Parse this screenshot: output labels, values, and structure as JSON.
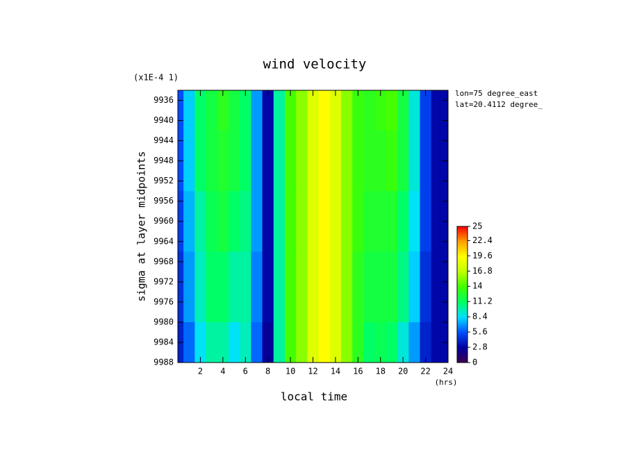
{
  "chart_data": {
    "type": "contour",
    "title": "wind velocity",
    "scale_note": "(x1E-4 1)",
    "xlabel": "local time",
    "xunit": "(hrs)",
    "ylabel": "sigma at layer midpoints",
    "annotations": [
      "lon=75 degree_east",
      "lat=20.4112 degree_"
    ],
    "x": [
      0,
      1,
      2,
      3,
      4,
      5,
      6,
      7,
      8,
      9,
      10,
      11,
      12,
      13,
      14,
      15,
      16,
      17,
      18,
      19,
      20,
      21,
      22,
      23,
      24
    ],
    "y": [
      9936,
      9948,
      9960,
      9972,
      9988
    ],
    "z": [
      [
        5.5,
        8,
        11,
        12,
        13,
        12,
        11,
        7,
        3,
        10,
        14,
        15.5,
        18,
        19.5,
        18,
        15.5,
        13.5,
        13,
        13.5,
        14,
        12,
        9,
        5,
        3,
        3
      ],
      [
        5.5,
        8,
        11,
        12,
        12.5,
        12,
        11,
        7,
        3,
        10,
        14,
        15.5,
        18,
        19.5,
        18,
        15.5,
        13.5,
        13,
        13,
        13.5,
        12,
        9,
        5,
        3,
        3
      ],
      [
        5,
        7.5,
        10,
        11.5,
        12,
        11,
        10.5,
        7,
        3,
        10,
        14,
        15.5,
        18,
        19.5,
        18,
        15.5,
        13.5,
        12.5,
        12.5,
        12.5,
        11,
        8.5,
        5,
        3,
        3
      ],
      [
        4.5,
        7,
        9.5,
        11,
        11,
        10,
        10,
        6.5,
        3,
        10,
        14,
        15.5,
        18,
        19.5,
        18,
        15.5,
        13,
        12,
        12,
        12,
        10.5,
        8,
        4.5,
        3,
        3
      ],
      [
        4,
        6,
        8.5,
        10,
        10,
        8.5,
        9.5,
        6,
        2.5,
        10,
        14,
        15.5,
        18,
        19.5,
        18,
        15.5,
        13,
        11,
        11.5,
        11,
        9,
        7,
        4,
        3,
        3
      ]
    ],
    "xlim": [
      0,
      24
    ],
    "xticks": [
      2,
      4,
      6,
      8,
      10,
      12,
      14,
      16,
      18,
      20,
      22,
      24
    ],
    "ylim": [
      9934,
      9988
    ],
    "yticks": [
      9936,
      9940,
      9944,
      9948,
      9952,
      9956,
      9960,
      9964,
      9968,
      9972,
      9976,
      9980,
      9984,
      9988
    ],
    "y_inverted": true,
    "colorbar_lim": [
      0,
      25
    ],
    "colorbar_ticks": [
      0,
      2.8,
      5.6,
      8.4,
      11.2,
      14,
      16.8,
      19.6,
      22.4,
      25
    ],
    "colormap": [
      "#3a0050",
      "#0000a0",
      "#0050ff",
      "#00e0ff",
      "#00ff60",
      "#40ff00",
      "#c0ff00",
      "#ffff00",
      "#ffa000",
      "#ff0000"
    ]
  }
}
